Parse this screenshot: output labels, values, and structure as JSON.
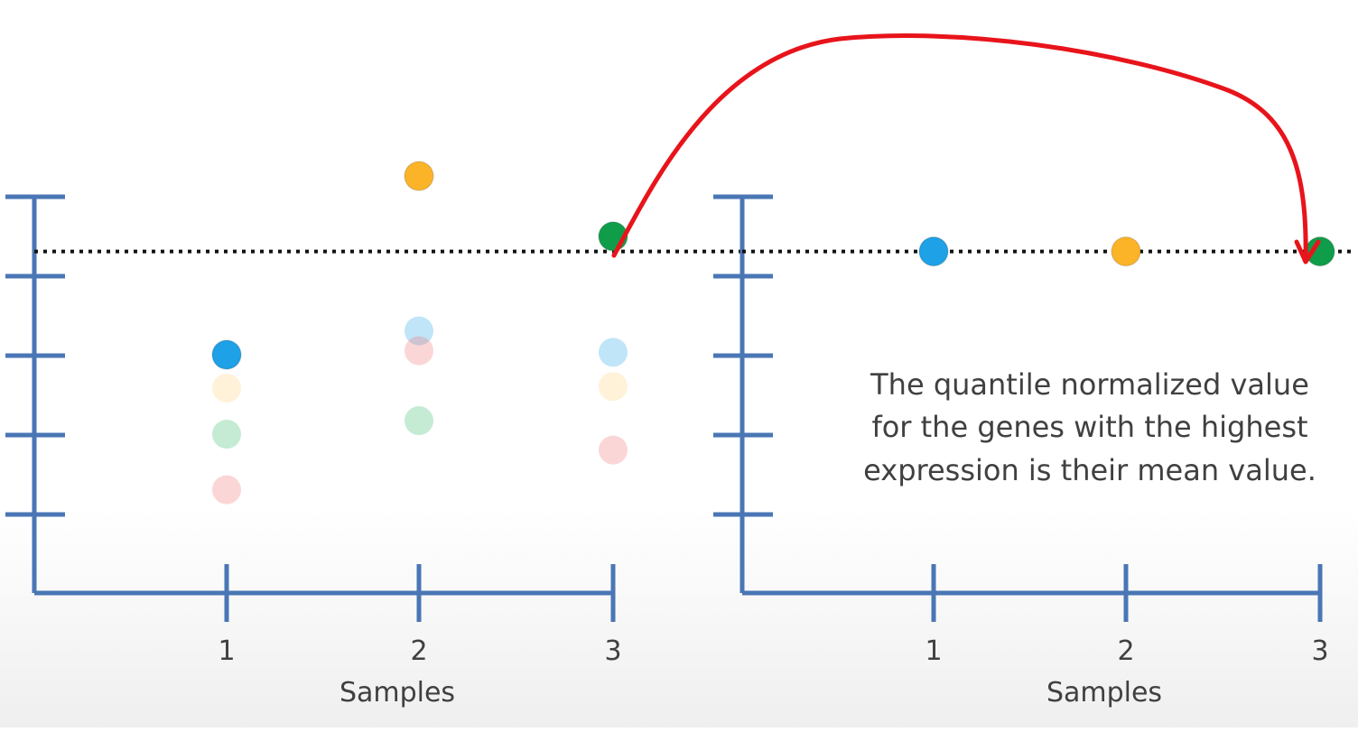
{
  "chart_data": [
    {
      "type": "scatter",
      "xlabel": "Samples",
      "x_ticks": [
        "1",
        "2",
        "3"
      ],
      "y_ticks": 5,
      "reference_line": {
        "y": 3.3,
        "style": "dotted",
        "color": "#111111"
      },
      "points": [
        {
          "x": 1,
          "y": 2.0,
          "color": "#1ea1e6",
          "faded": false
        },
        {
          "x": 1,
          "y": 1.58,
          "color": "#ffd275",
          "faded": true
        },
        {
          "x": 1,
          "y": 1.0,
          "color": "#2db864",
          "faded": true
        },
        {
          "x": 1,
          "y": 0.3,
          "color": "#f26a6a",
          "faded": true
        },
        {
          "x": 2,
          "y": 4.25,
          "color": "#fbb427",
          "faded": false
        },
        {
          "x": 2,
          "y": 2.3,
          "color": "#1ea1e6",
          "faded": true
        },
        {
          "x": 2,
          "y": 2.05,
          "color": "#f26a6a",
          "faded": true
        },
        {
          "x": 2,
          "y": 1.17,
          "color": "#2db864",
          "faded": true
        },
        {
          "x": 3,
          "y": 3.49,
          "color": "#0f9d4a",
          "faded": false
        },
        {
          "x": 3,
          "y": 2.03,
          "color": "#1ea1e6",
          "faded": true
        },
        {
          "x": 3,
          "y": 1.6,
          "color": "#ffd275",
          "faded": true
        },
        {
          "x": 3,
          "y": 0.8,
          "color": "#f26a6a",
          "faded": true
        }
      ]
    },
    {
      "type": "scatter",
      "xlabel": "Samples",
      "x_ticks": [
        "1",
        "2",
        "3"
      ],
      "y_ticks": 5,
      "reference_line": {
        "y": 3.3,
        "style": "dotted",
        "color": "#111111"
      },
      "points": [
        {
          "x": 1,
          "y": 3.3,
          "color": "#1ea1e6",
          "faded": false
        },
        {
          "x": 2,
          "y": 3.3,
          "color": "#fbb427",
          "faded": false
        },
        {
          "x": 3,
          "y": 3.3,
          "color": "#0f9d4a",
          "faded": false
        }
      ]
    }
  ],
  "annotation": {
    "lines": [
      "The quantile normalized value",
      "for the genes with the highest",
      "expression is their mean value."
    ]
  },
  "arrow": {
    "color": "#e8141b",
    "from": "left chart sample 3 point",
    "to": "right chart sample 3 point"
  },
  "colors": {
    "axis": "#4a76b5",
    "label": "#404040"
  }
}
